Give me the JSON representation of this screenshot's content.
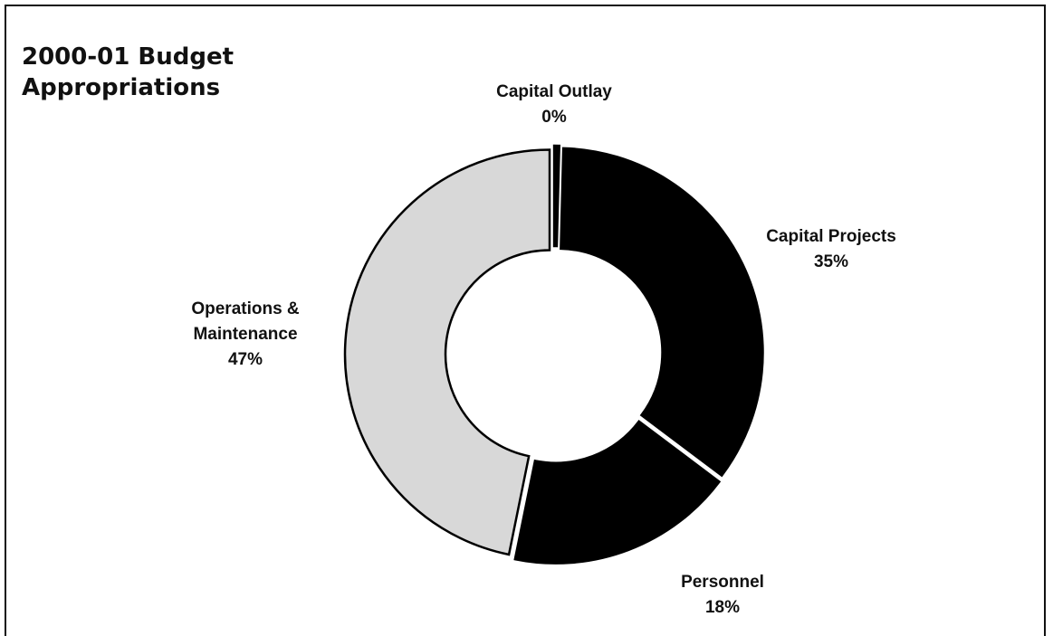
{
  "chart_data": {
    "type": "donut",
    "title": "2000-01 Budget Appropriations",
    "categories": [
      "Capital Outlay",
      "Capital Projects",
      "Personnel",
      "Operations & Maintenance"
    ],
    "values": [
      0.4,
      35,
      18,
      47
    ],
    "value_labels": [
      "0%",
      "35%",
      "18%",
      "47%"
    ],
    "colors": [
      "#000000",
      "#000000",
      "#000000",
      "#d8d8d8"
    ]
  }
}
